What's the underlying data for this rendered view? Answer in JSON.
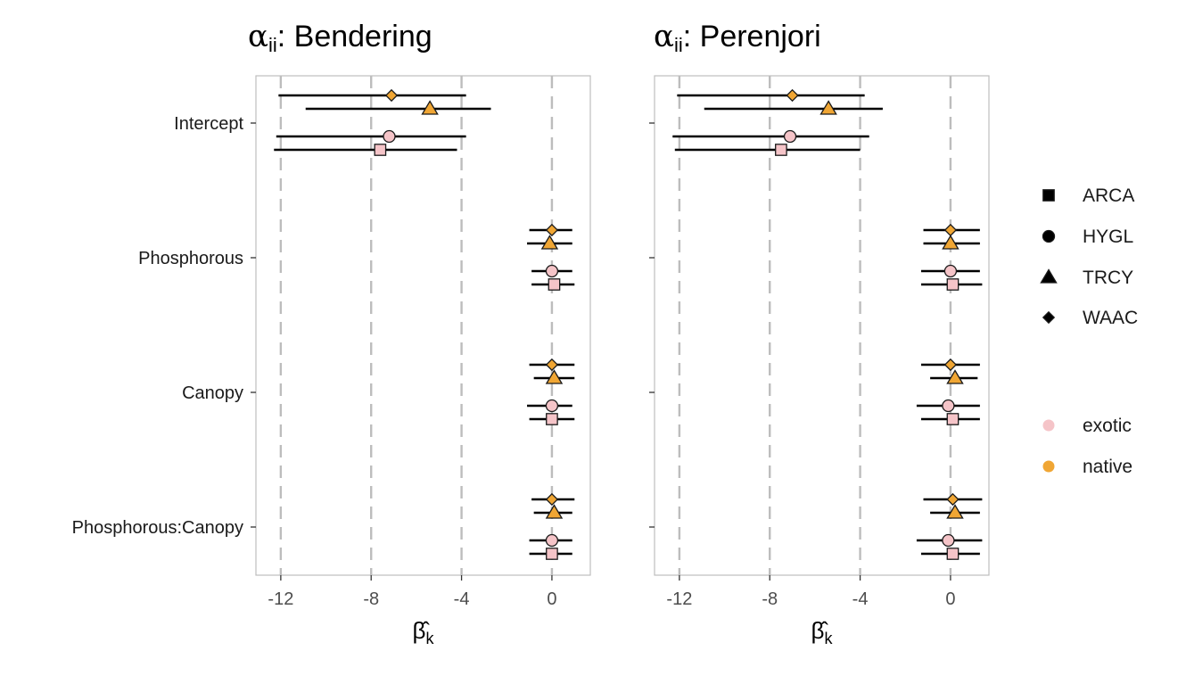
{
  "colors": {
    "native": "#f0a634",
    "exotic": "#f5c4c8",
    "gridline": "#bdbdbd",
    "panel_border": "#bdbdbd",
    "errorbar": "#000000",
    "point_stroke": "#1a1a1a"
  },
  "chart_data": {
    "type": "scatter",
    "subtype": "coefficient-forest-plot",
    "xlabel": "β̂k",
    "x_ticks": [
      -12,
      -8,
      -4,
      0
    ],
    "xlim": [
      -13.1,
      1.7
    ],
    "grid": "vertical dashed at x ticks",
    "categories": [
      "Intercept",
      "Phosphorous",
      "Canopy",
      "Phosphorous:Canopy"
    ],
    "species_order": [
      "WAAC",
      "TRCY",
      "HYGL",
      "ARCA"
    ],
    "legend_shapes": [
      {
        "label": "ARCA",
        "shape": "square"
      },
      {
        "label": "HYGL",
        "shape": "circle"
      },
      {
        "label": "TRCY",
        "shape": "triangle"
      },
      {
        "label": "WAAC",
        "shape": "diamond"
      }
    ],
    "legend_colors": [
      {
        "label": "exotic",
        "color": "#f5c4c8"
      },
      {
        "label": "native",
        "color": "#f0a634"
      }
    ],
    "species_status": {
      "ARCA": "exotic",
      "HYGL": "exotic",
      "TRCY": "native",
      "WAAC": "native"
    },
    "panels": [
      {
        "title_main": "α",
        "title_sub": "ii",
        "title_rest": ": Bendering",
        "estimates": {
          "Intercept": {
            "WAAC": {
              "est": -7.1,
              "lo": -12.1,
              "hi": -3.8
            },
            "TRCY": {
              "est": -5.4,
              "lo": -10.9,
              "hi": -2.7
            },
            "HYGL": {
              "est": -7.2,
              "lo": -12.2,
              "hi": -3.8
            },
            "ARCA": {
              "est": -7.6,
              "lo": -12.3,
              "hi": -4.2
            }
          },
          "Phosphorous": {
            "WAAC": {
              "est": 0.0,
              "lo": -1.0,
              "hi": 0.9
            },
            "TRCY": {
              "est": -0.1,
              "lo": -1.1,
              "hi": 0.9
            },
            "HYGL": {
              "est": 0.0,
              "lo": -0.9,
              "hi": 0.9
            },
            "ARCA": {
              "est": 0.1,
              "lo": -0.9,
              "hi": 1.0
            }
          },
          "Canopy": {
            "WAAC": {
              "est": 0.0,
              "lo": -1.0,
              "hi": 1.0
            },
            "TRCY": {
              "est": 0.1,
              "lo": -0.8,
              "hi": 1.0
            },
            "HYGL": {
              "est": 0.0,
              "lo": -1.1,
              "hi": 0.9
            },
            "ARCA": {
              "est": 0.0,
              "lo": -1.0,
              "hi": 1.0
            }
          },
          "Phosphorous:Canopy": {
            "WAAC": {
              "est": 0.0,
              "lo": -0.9,
              "hi": 1.0
            },
            "TRCY": {
              "est": 0.1,
              "lo": -0.8,
              "hi": 0.9
            },
            "HYGL": {
              "est": 0.0,
              "lo": -1.0,
              "hi": 0.9
            },
            "ARCA": {
              "est": 0.0,
              "lo": -1.0,
              "hi": 0.9
            }
          }
        }
      },
      {
        "title_main": "α",
        "title_sub": "ii",
        "title_rest": ": Perenjori",
        "estimates": {
          "Intercept": {
            "WAAC": {
              "est": -7.0,
              "lo": -12.1,
              "hi": -3.8
            },
            "TRCY": {
              "est": -5.4,
              "lo": -10.9,
              "hi": -3.0
            },
            "HYGL": {
              "est": -7.1,
              "lo": -12.3,
              "hi": -3.6
            },
            "ARCA": {
              "est": -7.5,
              "lo": -12.2,
              "hi": -4.0
            }
          },
          "Phosphorous": {
            "WAAC": {
              "est": 0.0,
              "lo": -1.2,
              "hi": 1.3
            },
            "TRCY": {
              "est": 0.0,
              "lo": -1.2,
              "hi": 1.3
            },
            "HYGL": {
              "est": 0.0,
              "lo": -1.3,
              "hi": 1.3
            },
            "ARCA": {
              "est": 0.1,
              "lo": -1.3,
              "hi": 1.4
            }
          },
          "Canopy": {
            "WAAC": {
              "est": 0.0,
              "lo": -1.3,
              "hi": 1.3
            },
            "TRCY": {
              "est": 0.2,
              "lo": -0.9,
              "hi": 1.2
            },
            "HYGL": {
              "est": -0.1,
              "lo": -1.5,
              "hi": 1.3
            },
            "ARCA": {
              "est": 0.1,
              "lo": -1.3,
              "hi": 1.3
            }
          },
          "Phosphorous:Canopy": {
            "WAAC": {
              "est": 0.1,
              "lo": -1.2,
              "hi": 1.4
            },
            "TRCY": {
              "est": 0.2,
              "lo": -0.9,
              "hi": 1.3
            },
            "HYGL": {
              "est": -0.1,
              "lo": -1.5,
              "hi": 1.4
            },
            "ARCA": {
              "est": 0.1,
              "lo": -1.3,
              "hi": 1.3
            }
          }
        }
      }
    ]
  }
}
